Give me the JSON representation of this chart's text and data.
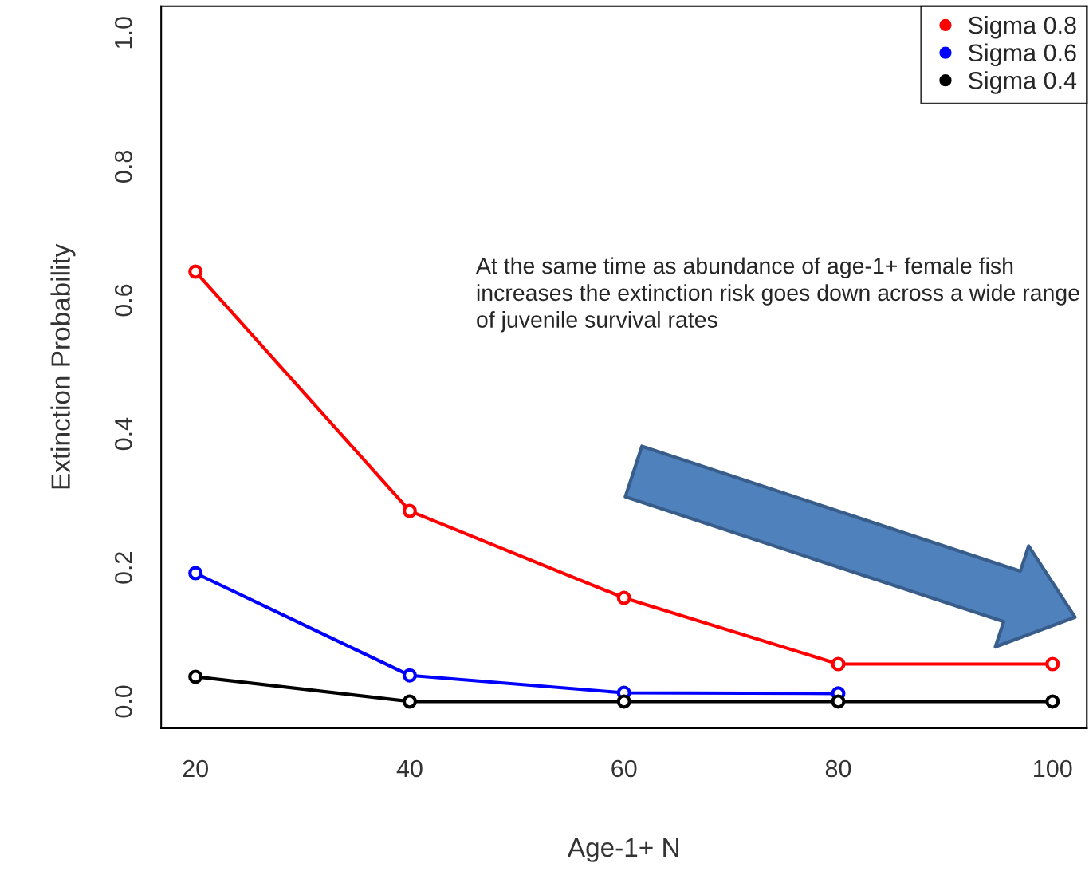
{
  "chart_data": {
    "type": "line",
    "xlabel": "Age-1+ N",
    "ylabel": "Extinction Probability",
    "x": [
      20,
      40,
      60,
      80,
      100
    ],
    "series": [
      {
        "name": "Sigma 0.8",
        "color": "#ff0000",
        "values": [
          0.643,
          0.285,
          0.155,
          0.056,
          0.056
        ]
      },
      {
        "name": "Sigma 0.6",
        "color": "#0000ff",
        "values": [
          0.192,
          0.039,
          0.013,
          0.012,
          null
        ]
      },
      {
        "name": "Sigma 0.4",
        "color": "#000000",
        "values": [
          0.037,
          0,
          0,
          0,
          0
        ]
      }
    ],
    "marker": "circle",
    "legend": "top right",
    "grid": false,
    "xlim": [
      16.8,
      103.2
    ],
    "ylim": [
      -0.04,
      1.04
    ],
    "xticks": [
      20,
      40,
      60,
      80,
      100
    ],
    "yticks": [
      {
        "value": 0,
        "label": "0.0"
      },
      0.2,
      0.4,
      0.6,
      0.8,
      {
        "value": 1,
        "label": "1.0"
      }
    ],
    "annotations": [
      "At the same time as abundance of age-1+ female fish increases the extinction risk goes down across a wide range of juvenile survival rates"
    ]
  }
}
